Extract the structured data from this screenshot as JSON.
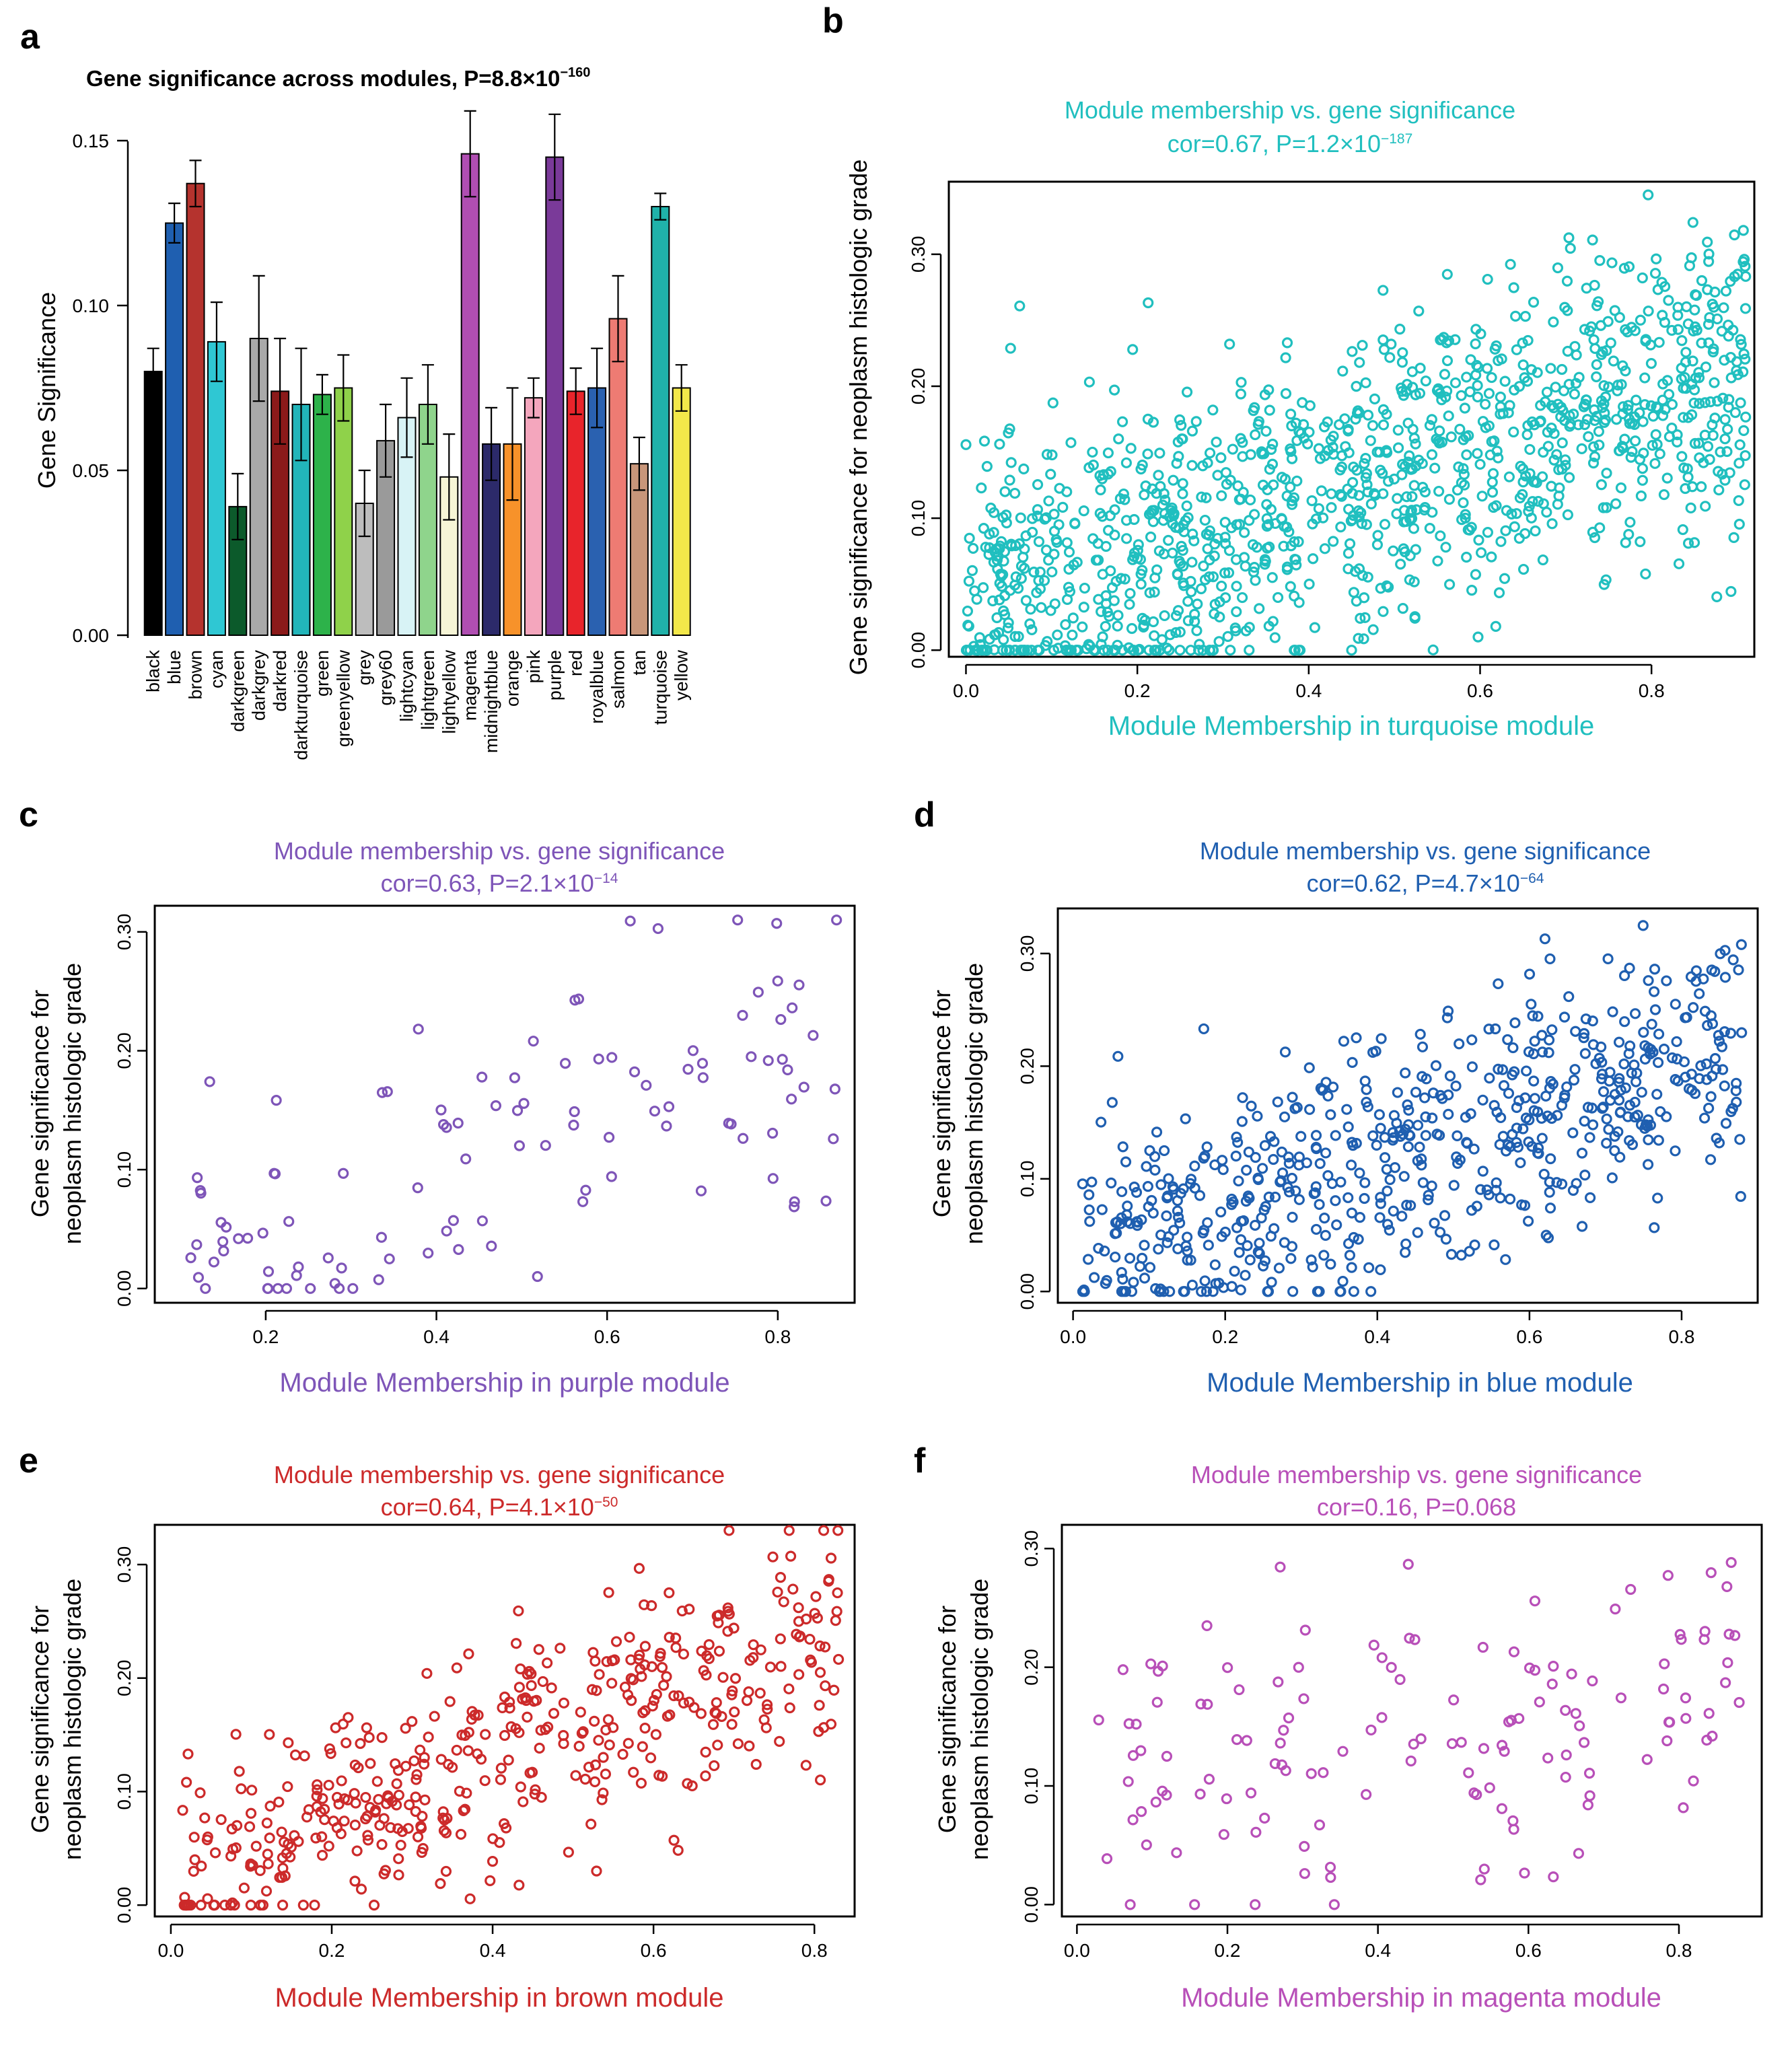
{
  "panel_letters": [
    "a",
    "b",
    "c",
    "d",
    "e",
    "f"
  ],
  "chart_data": [
    {
      "panel": "a",
      "type": "bar",
      "title": "Gene significance across modules, P=8.8×10",
      "title_exponent": "−160",
      "xlabel": "",
      "ylabel": "Gene Significance",
      "ylim": [
        0,
        0.15
      ],
      "yticks": [
        0.0,
        0.05,
        0.1,
        0.15
      ],
      "ytick_labels": [
        "0.00",
        "0.05",
        "0.10",
        "0.15"
      ],
      "categories": [
        "black",
        "blue",
        "brown",
        "cyan",
        "darkgreen",
        "darkgrey",
        "darkred",
        "darkturquoise",
        "green",
        "greenyellow",
        "grey",
        "grey60",
        "lightcyan",
        "lightgreen",
        "lightyellow",
        "magenta",
        "midnightblue",
        "orange",
        "pink",
        "purple",
        "red",
        "royalblue",
        "salmon",
        "tan",
        "turquoise",
        "yellow"
      ],
      "values": [
        0.08,
        0.125,
        0.137,
        0.089,
        0.039,
        0.09,
        0.074,
        0.07,
        0.073,
        0.075,
        0.04,
        0.059,
        0.066,
        0.07,
        0.048,
        0.146,
        0.058,
        0.058,
        0.072,
        0.145,
        0.074,
        0.075,
        0.096,
        0.052,
        0.13,
        0.075
      ],
      "errors": [
        0.007,
        0.006,
        0.007,
        0.012,
        0.01,
        0.019,
        0.016,
        0.017,
        0.006,
        0.01,
        0.01,
        0.011,
        0.012,
        0.012,
        0.013,
        0.013,
        0.011,
        0.017,
        0.006,
        0.013,
        0.007,
        0.012,
        0.013,
        0.008,
        0.004,
        0.007
      ],
      "colors": [
        "#000000",
        "#1f5fb0",
        "#b5332e",
        "#2fc7d3",
        "#0c5a2b",
        "#a9a9a9",
        "#8b1a1a",
        "#22b5ba",
        "#2db24a",
        "#8fd24a",
        "#bdbdbd",
        "#9a9a9a",
        "#d8f3f6",
        "#8fd48c",
        "#f6f5d6",
        "#b04eb2",
        "#2c2a6a",
        "#f7922a",
        "#f4a6bd",
        "#7a3a99",
        "#e8242b",
        "#2a61b0",
        "#ee7b73",
        "#c8967a",
        "#20b2aa",
        "#f3e84a"
      ]
    },
    {
      "panel": "b",
      "type": "scatter",
      "color": "#20bfbf",
      "title_line1": "Module membership vs. gene significance",
      "title_line2": "cor=0.67, P=1.2×10",
      "title_exponent": "−187",
      "xlabel": "Module Membership in turquoise module",
      "ylabel": [
        "Gene significance for neoplasm histologic grade"
      ],
      "xlim": [
        -0.02,
        0.92
      ],
      "ylim": [
        -0.005,
        0.355
      ],
      "xticks": [
        0.0,
        0.2,
        0.4,
        0.6,
        0.8
      ],
      "xtick_labels": [
        "0.0",
        "0.2",
        "0.4",
        "0.6",
        "0.8"
      ],
      "yticks": [
        0.0,
        0.1,
        0.2,
        0.3
      ],
      "ytick_labels": [
        "0.00",
        "0.10",
        "0.20",
        "0.30"
      ],
      "points": {
        "n": 1200,
        "x_min": 0.0,
        "x_max": 0.91,
        "y_min": 0.0,
        "y_max": 0.345,
        "intercept": 0.035,
        "slope": 0.2,
        "noise": 0.06,
        "seed": 11
      }
    },
    {
      "panel": "c",
      "type": "scatter",
      "color": "#7e55b8",
      "title_line1": "Module membership vs. gene significance",
      "title_line2": "cor=0.63, P=2.1×10",
      "title_exponent": "−14",
      "xlabel": "Module Membership in purple module",
      "ylabel": [
        "Gene significance for",
        "neoplasm histologic grade"
      ],
      "xlim": [
        0.07,
        0.89
      ],
      "ylim": [
        -0.012,
        0.322
      ],
      "xticks": [
        0.2,
        0.4,
        0.6,
        0.8
      ],
      "xtick_labels": [
        "0.2",
        "0.4",
        "0.6",
        "0.8"
      ],
      "yticks": [
        0.0,
        0.1,
        0.2,
        0.3
      ],
      "ytick_labels": [
        "0.00",
        "0.10",
        "0.20",
        "0.30"
      ],
      "points": {
        "n": 110,
        "x_min": 0.09,
        "x_max": 0.87,
        "y_min": 0.0,
        "y_max": 0.31,
        "intercept": 0.02,
        "slope": 0.22,
        "noise": 0.06,
        "seed": 23
      }
    },
    {
      "panel": "d",
      "type": "scatter",
      "color": "#1f5fb0",
      "title_line1": "Module membership vs. gene significance",
      "title_line2": "cor=0.62, P=4.7×10",
      "title_exponent": "−64",
      "xlabel": "Module Membership in blue module",
      "ylabel": [
        "Gene significance for",
        "neoplasm histologic grade"
      ],
      "xlim": [
        -0.02,
        0.9
      ],
      "ylim": [
        -0.01,
        0.34
      ],
      "xticks": [
        0.0,
        0.2,
        0.4,
        0.6,
        0.8
      ],
      "xtick_labels": [
        "0.0",
        "0.2",
        "0.4",
        "0.6",
        "0.8"
      ],
      "yticks": [
        0.0,
        0.1,
        0.2,
        0.3
      ],
      "ytick_labels": [
        "0.00",
        "0.10",
        "0.20",
        "0.30"
      ],
      "points": {
        "n": 620,
        "x_min": 0.01,
        "x_max": 0.88,
        "y_min": 0.0,
        "y_max": 0.33,
        "intercept": 0.03,
        "slope": 0.21,
        "noise": 0.055,
        "seed": 37
      }
    },
    {
      "panel": "e",
      "type": "scatter",
      "color": "#cc2a2a",
      "title_line1": "Module membership vs. gene significance",
      "title_line2": "cor=0.64, P=4.1×10",
      "title_exponent": "−50",
      "xlabel": "Module Membership in brown module",
      "ylabel": [
        "Gene significance for",
        "neoplasm histologic grade"
      ],
      "xlim": [
        -0.02,
        0.85
      ],
      "ylim": [
        -0.01,
        0.335
      ],
      "xticks": [
        0.0,
        0.2,
        0.4,
        0.6,
        0.8
      ],
      "xtick_labels": [
        "0.0",
        "0.2",
        "0.4",
        "0.6",
        "0.8"
      ],
      "yticks": [
        0.0,
        0.1,
        0.2,
        0.3
      ],
      "ytick_labels": [
        "0.00",
        "0.10",
        "0.20",
        "0.30"
      ],
      "points": {
        "n": 440,
        "x_min": 0.01,
        "x_max": 0.83,
        "y_min": 0.0,
        "y_max": 0.33,
        "intercept": 0.02,
        "slope": 0.27,
        "noise": 0.05,
        "seed": 53
      }
    },
    {
      "panel": "f",
      "type": "scatter",
      "color": "#b84fb8",
      "title_line1": "Module membership vs. gene significance",
      "title_line2": "cor=0.16, P=0.068",
      "title_exponent": "",
      "xlabel": "Module Membership in magenta module",
      "ylabel": [
        "Gene significance for",
        "neoplasm histologic grade"
      ],
      "xlim": [
        -0.02,
        0.91
      ],
      "ylim": [
        -0.01,
        0.32
      ],
      "xticks": [
        0.0,
        0.2,
        0.4,
        0.6,
        0.8
      ],
      "xtick_labels": [
        "0.0",
        "0.2",
        "0.4",
        "0.6",
        "0.8"
      ],
      "yticks": [
        0.0,
        0.1,
        0.2,
        0.3
      ],
      "ytick_labels": [
        "0.00",
        "0.10",
        "0.20",
        "0.30"
      ],
      "points": {
        "n": 140,
        "x_min": 0.02,
        "x_max": 0.89,
        "y_min": 0.0,
        "y_max": 0.3,
        "intercept": 0.1,
        "slope": 0.1,
        "noise": 0.07,
        "seed": 71
      }
    }
  ]
}
